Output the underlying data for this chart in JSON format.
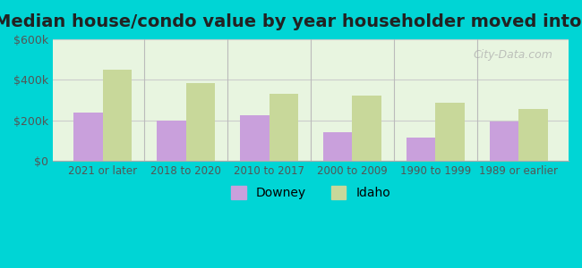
{
  "title": "Median house/condo value by year householder moved into unit",
  "categories": [
    "2021 or later",
    "2018 to 2020",
    "2010 to 2017",
    "2000 to 2009",
    "1990 to 1999",
    "1989 or earlier"
  ],
  "downey_values": [
    240000,
    200000,
    225000,
    140000,
    115000,
    195000
  ],
  "idaho_values": [
    450000,
    385000,
    330000,
    320000,
    285000,
    255000
  ],
  "downey_color": "#c9a0dc",
  "idaho_color": "#c8d89a",
  "ylim": [
    0,
    600000
  ],
  "yticks": [
    0,
    200000,
    400000,
    600000
  ],
  "ytick_labels": [
    "$0",
    "$200k",
    "$400k",
    "$600k"
  ],
  "bg_color_top": "#e8f5e0",
  "bg_color_bottom": "#f5fdf0",
  "outer_bg": "#00d5d5",
  "title_fontsize": 14,
  "legend_labels": [
    "Downey",
    "Idaho"
  ],
  "watermark": "City-Data.com"
}
